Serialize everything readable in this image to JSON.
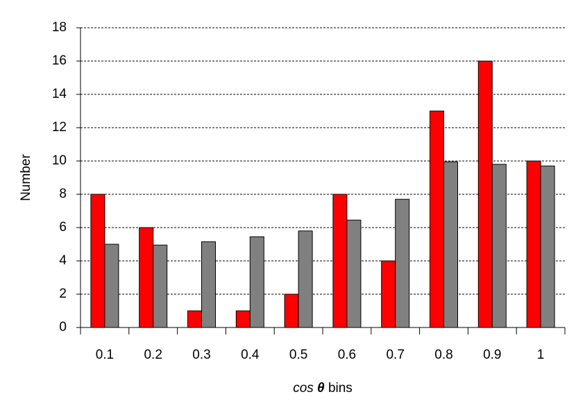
{
  "chart_data": {
    "type": "bar",
    "x_label": [
      "cos",
      "θ",
      "bins"
    ],
    "y_label": "Number",
    "categories": [
      "0.1",
      "0.2",
      "0.3",
      "0.4",
      "0.5",
      "0.6",
      "0.7",
      "0.8",
      "0.9",
      "1"
    ],
    "series": [
      {
        "color": "#ff0000",
        "values": [
          8,
          6,
          1,
          1,
          2,
          8,
          4,
          13,
          16,
          10
        ]
      },
      {
        "color": "#808080",
        "values": [
          5,
          4.95,
          5.15,
          5.45,
          5.8,
          6.45,
          7.7,
          9.95,
          9.8,
          9.7
        ]
      }
    ],
    "ylim": [
      0,
      18
    ],
    "yticks": [
      0,
      2,
      4,
      6,
      8,
      10,
      12,
      14,
      16,
      18
    ],
    "grid": true
  }
}
